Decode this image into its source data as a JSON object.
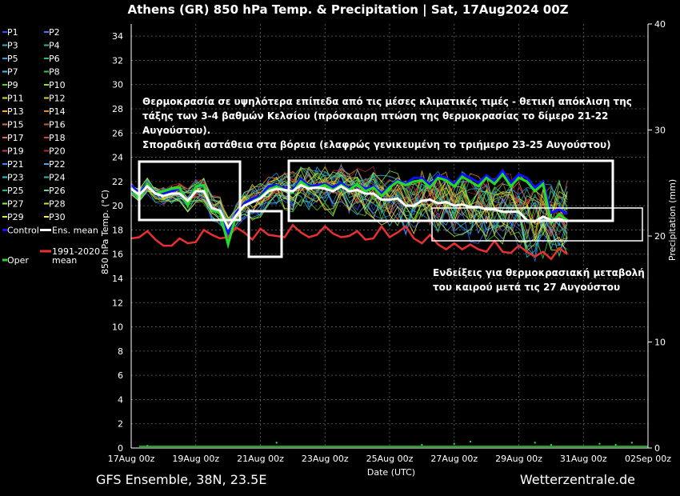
{
  "chart_data": {
    "type": "line",
    "title": "Athens  (GR)  850 hPa Temp. & Precipitation | Sat, 17Aug2024 00Z",
    "ylabel": "850 hPa Temp. (°C)",
    "y2label": "Precipitation (mm)",
    "xlabel": "Date (UTC)",
    "ylim": [
      0,
      35
    ],
    "y2lim": [
      0,
      40
    ],
    "xlim_days": [
      0,
      16
    ],
    "yticks": [
      0,
      2,
      4,
      6,
      8,
      10,
      12,
      14,
      16,
      18,
      20,
      22,
      24,
      26,
      28,
      30,
      32,
      34
    ],
    "y2ticks": [
      0,
      10,
      20,
      30,
      40
    ],
    "xtick_labels": [
      "17Aug 00z",
      "19Aug 00z",
      "21Aug 00z",
      "23Aug 00z",
      "25Aug 00z",
      "27Aug 00z",
      "29Aug 00z",
      "31Aug 00z",
      "02Sep 00z"
    ],
    "grid": true,
    "legend_position": "left",
    "colors": {
      "control": "#1010ff",
      "ens_mean": "#ffffff",
      "oper": "#22dd22",
      "climate": "#e83030"
    },
    "legend": {
      "members": [
        "P1",
        "P2",
        "P3",
        "P4",
        "P5",
        "P6",
        "P7",
        "P8",
        "P9",
        "P10",
        "P11",
        "P12",
        "P13",
        "P14",
        "P15",
        "P16",
        "P17",
        "P18",
        "P19",
        "P20",
        "P21",
        "P22",
        "P23",
        "P24",
        "P25",
        "P26",
        "P27",
        "P28",
        "P29",
        "P30"
      ],
      "member_colors": [
        "#2a52ff",
        "#3a7bff",
        "#2bb3c8",
        "#2fb7a0",
        "#2aa0e0",
        "#23c86a",
        "#36c0ff",
        "#33cc44",
        "#44dd22",
        "#88ee11",
        "#dddd22",
        "#eecc22",
        "#ffaa22",
        "#ee8822",
        "#cc7744",
        "#bb6633",
        "#ee6644",
        "#dd4444",
        "#cc3366",
        "#bb2244",
        "#3388ff",
        "#44aaff",
        "#22cccc",
        "#33bbaa",
        "#11bb88",
        "#66dd88",
        "#99ee55",
        "#bbee33",
        "#ddee22",
        "#ffee44"
      ],
      "control": "Control",
      "ens_mean": "Ens. mean",
      "oper": "Oper",
      "climate": "1991-2020 mean"
    },
    "series": [
      {
        "name": "Ens. mean",
        "values": [
          21.4,
          20.9,
          21.6,
          21.0,
          20.8,
          21.0,
          21.0,
          20.4,
          21.2,
          21.2,
          19.8,
          19.6,
          18.2,
          19.2,
          20.0,
          20.3,
          20.6,
          21.2,
          21.4,
          21.3,
          21.2,
          21.7,
          21.4,
          21.5,
          21.4,
          21.2,
          21.6,
          21.2,
          21.3,
          21.0,
          21.0,
          20.5,
          20.5,
          20.6,
          20.0,
          20.0,
          20.4,
          20.5,
          20.2,
          20.3,
          20.0,
          20.1,
          19.9,
          19.9,
          19.7,
          19.7,
          19.5,
          19.5,
          19.5,
          18.8,
          18.7,
          19.1,
          18.8,
          18.9,
          18.7
        ]
      },
      {
        "name": "Control",
        "values": [
          21.7,
          21.0,
          21.8,
          21.1,
          21.0,
          21.2,
          21.4,
          20.2,
          21.6,
          21.6,
          19.8,
          19.4,
          17.8,
          19.4,
          20.2,
          20.6,
          20.8,
          21.6,
          21.7,
          21.4,
          21.3,
          22.2,
          21.6,
          21.7,
          21.8,
          21.5,
          21.9,
          21.4,
          21.8,
          21.4,
          21.6,
          21.0,
          21.6,
          22.1,
          21.8,
          22.3,
          22.3,
          21.7,
          22.5,
          22.3,
          21.8,
          22.6,
          22.3,
          21.9,
          22.5,
          22.0,
          22.9,
          21.9,
          22.6,
          22.3,
          21.5,
          22.0,
          19.4,
          19.7,
          19.3
        ]
      },
      {
        "name": "Oper",
        "values": [
          21.5,
          20.5,
          21.8,
          21.0,
          21.2,
          21.4,
          21.5,
          20.0,
          21.6,
          21.7,
          19.6,
          19.4,
          16.8,
          19.2,
          20.0,
          20.3,
          20.7,
          21.3,
          21.6,
          21.3,
          21.1,
          22.0,
          21.5,
          21.5,
          21.7,
          21.3,
          21.7,
          21.3,
          21.8,
          21.2,
          21.5,
          20.8,
          21.5,
          22.0,
          21.7,
          22.0,
          22.1,
          21.5,
          22.3,
          22.1,
          21.6,
          22.4,
          22.0,
          21.6,
          22.3,
          21.8,
          22.6,
          21.6,
          22.3,
          22.0,
          21.2,
          21.8,
          18.6,
          19.3,
          18.8
        ]
      },
      {
        "name": "1991-2020 mean",
        "values": [
          17.3,
          17.4,
          17.9,
          17.2,
          16.7,
          16.7,
          17.3,
          16.9,
          17.0,
          18.0,
          17.6,
          17.3,
          17.4,
          18.2,
          17.8,
          17.2,
          18.1,
          17.6,
          17.5,
          17.4,
          18.4,
          17.8,
          17.4,
          17.6,
          18.3,
          17.7,
          17.4,
          17.5,
          17.9,
          17.2,
          17.3,
          18.3,
          17.4,
          17.8,
          18.3,
          17.3,
          16.9,
          17.6,
          16.8,
          16.4,
          16.9,
          16.4,
          16.8,
          16.4,
          16.2,
          17.1,
          16.2,
          16.1,
          16.7,
          16.2,
          15.8,
          16.2,
          15.6,
          16.5,
          16.0
        ]
      }
    ],
    "x_step_days": 0.25,
    "precip": {
      "x_days": [
        0.5,
        4.5,
        9.0,
        10.0,
        10.5,
        12.5,
        13.0,
        14.5,
        15.0,
        15.5
      ],
      "values": [
        0.2,
        0.5,
        0.3,
        0.4,
        0.6,
        0.5,
        0.3,
        0.4,
        0.3,
        0.5
      ]
    },
    "annotations": {
      "note1_lines": [
        "Θερμοκρασία σε υψηλότερα επίπεδα από τις μέσες κλιματικές τιμές - θετική απόκλιση της",
        "τάξης των 3-4 βαθμών Κελσίου (πρόσκαιρη πτώση της θερμοκρασίας το δίμερο 21-22",
        "Αυγούστου).",
        "Σποραδική αστάθεια στα βόρεια (ελαφρώς γενικευμένη το τριήμερο 23-25 Αυγούστου)"
      ],
      "note2_lines": [
        "Ενδείξεις για θερμοκρασιακή μεταβολή",
        "του καιρού μετά τις 27 Αυγούστου"
      ]
    }
  },
  "footer": {
    "left": "GFS Ensemble, 38N, 23.5E",
    "right": "Wetterzentrale.de"
  }
}
